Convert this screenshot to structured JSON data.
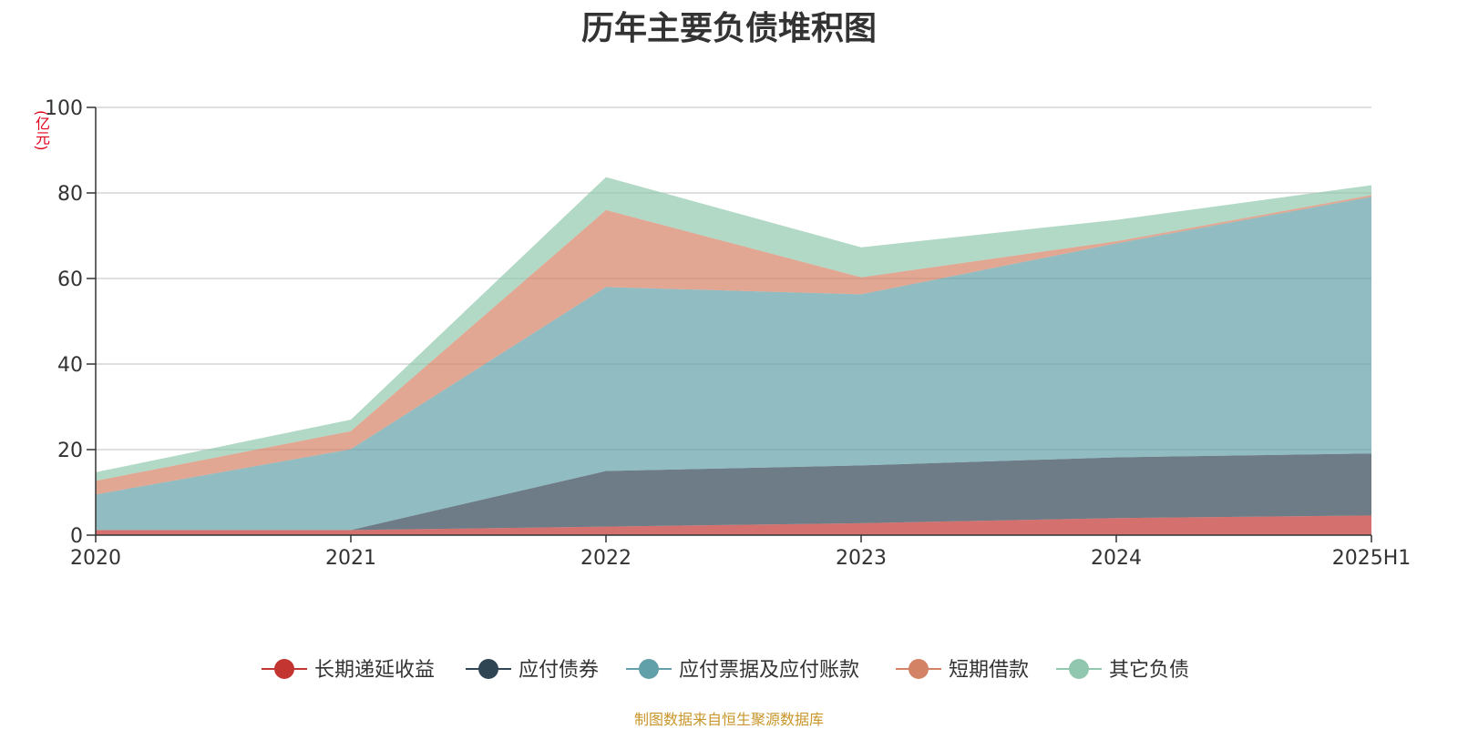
{
  "title": "历年主要负债堆积图",
  "unit_label": "(亿元)",
  "source_note": "制图数据来自恒生聚源数据库",
  "chart_data": {
    "type": "area",
    "stacked": true,
    "title": "历年主要负债堆积图",
    "ylabel": "(亿元)",
    "xlabel": "",
    "ylim": [
      0,
      100
    ],
    "yticks": [
      0,
      20,
      40,
      60,
      80,
      100
    ],
    "grid": true,
    "legend_position": "bottom",
    "categories": [
      "2020",
      "2021",
      "2022",
      "2023",
      "2024",
      "2025H1"
    ],
    "series": [
      {
        "name": "长期递延收益",
        "color": "#c23531",
        "values": [
          1.2,
          1.2,
          2.0,
          2.8,
          4.0,
          4.6
        ]
      },
      {
        "name": "应付债券",
        "color": "#2f4554",
        "values": [
          0,
          0,
          13.0,
          13.5,
          14.2,
          14.5
        ]
      },
      {
        "name": "应付票据及应付账款",
        "color": "#61a0a8",
        "values": [
          8.3,
          18.9,
          43.0,
          40.0,
          50.0,
          60.0
        ]
      },
      {
        "name": "短期借款",
        "color": "#d48265",
        "values": [
          3.2,
          4.2,
          18.0,
          4.0,
          0.5,
          0.4
        ]
      },
      {
        "name": "其它负债",
        "color": "#91c7ae",
        "values": [
          2.0,
          2.7,
          7.7,
          7.0,
          5.0,
          2.3
        ]
      }
    ]
  }
}
